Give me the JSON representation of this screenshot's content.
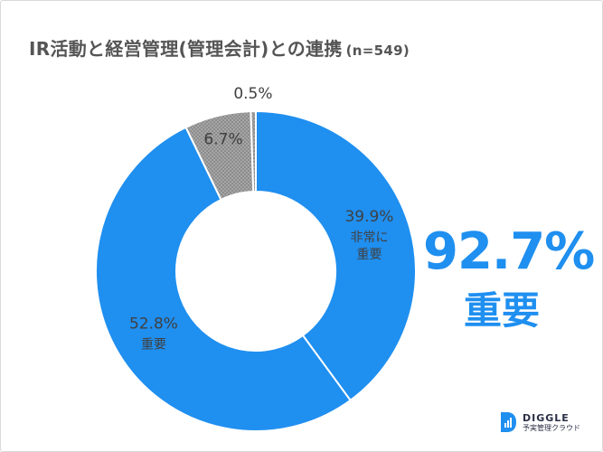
{
  "title": "IR活動と経営管理(管理会計)との連携",
  "subtitle": "(n=549)",
  "highlight": {
    "value": "92.7%",
    "label": "重要"
  },
  "logo": {
    "name": "DIGGLE",
    "sub": "予実管理クラウド",
    "color": "#1f8ff0"
  },
  "chart_data": {
    "type": "pie",
    "donut": true,
    "title": "IR活動と経営管理(管理会計)との連携",
    "n": 549,
    "slices": [
      {
        "value": 39.9,
        "label": "39.9%",
        "name_lines": [
          "非常に",
          "重要"
        ],
        "color": "#1f8ff0"
      },
      {
        "value": 52.8,
        "label": "52.8%",
        "name_lines": [
          "重要"
        ],
        "color": "#1f8ff0"
      },
      {
        "value": 6.7,
        "label": "6.7%",
        "name_lines": [],
        "color": "#8c8c8c",
        "pattern": "checker"
      },
      {
        "value": 0.5,
        "label": "0.5%",
        "name_lines": [],
        "color": "#8c8c8c",
        "pattern": "checker"
      }
    ]
  }
}
